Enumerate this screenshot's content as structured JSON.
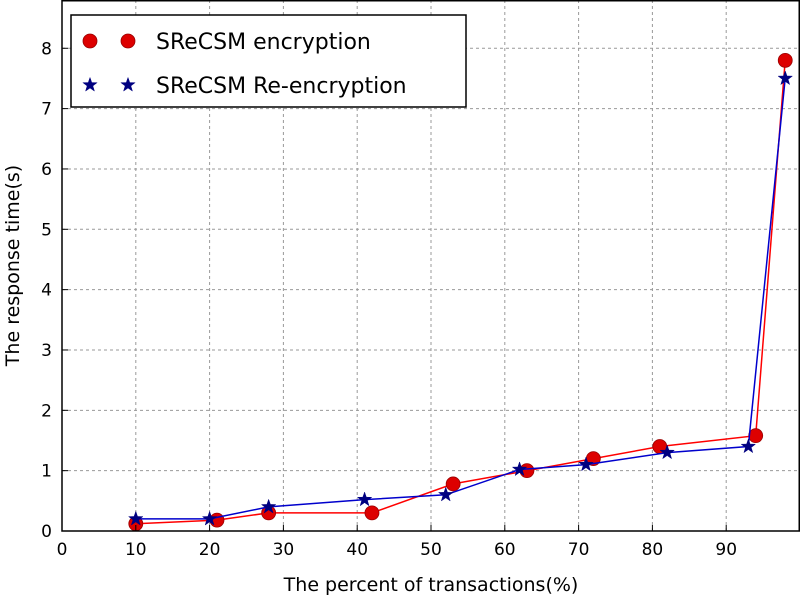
{
  "chart_data": {
    "type": "line",
    "xlabel": "The percent of transactions(%)",
    "ylabel": "The response time(s)",
    "xlim": [
      0,
      100
    ],
    "ylim": [
      0,
      8.8
    ],
    "xticks": [
      0,
      10,
      20,
      30,
      40,
      50,
      60,
      70,
      80,
      90
    ],
    "yticks": [
      0,
      1,
      2,
      3,
      4,
      5,
      6,
      7,
      8
    ],
    "grid": true,
    "legend_position": "top-left",
    "series": [
      {
        "name": "SReCSM encryption",
        "color": "#ff0000",
        "marker": "circle",
        "marker_color": "#dd0000",
        "x": [
          10,
          21,
          28,
          42,
          53,
          63,
          72,
          81,
          94,
          98
        ],
        "y": [
          0.12,
          0.18,
          0.3,
          0.3,
          0.78,
          1.0,
          1.2,
          1.4,
          1.58,
          7.8
        ]
      },
      {
        "name": "SReCSM Re-encryption",
        "color": "#0000cc",
        "marker": "star",
        "marker_color": "#000080",
        "x": [
          10,
          20,
          28,
          41,
          52,
          62,
          71,
          82,
          93,
          98
        ],
        "y": [
          0.2,
          0.2,
          0.4,
          0.52,
          0.6,
          1.02,
          1.1,
          1.3,
          1.4,
          7.5
        ]
      }
    ]
  }
}
